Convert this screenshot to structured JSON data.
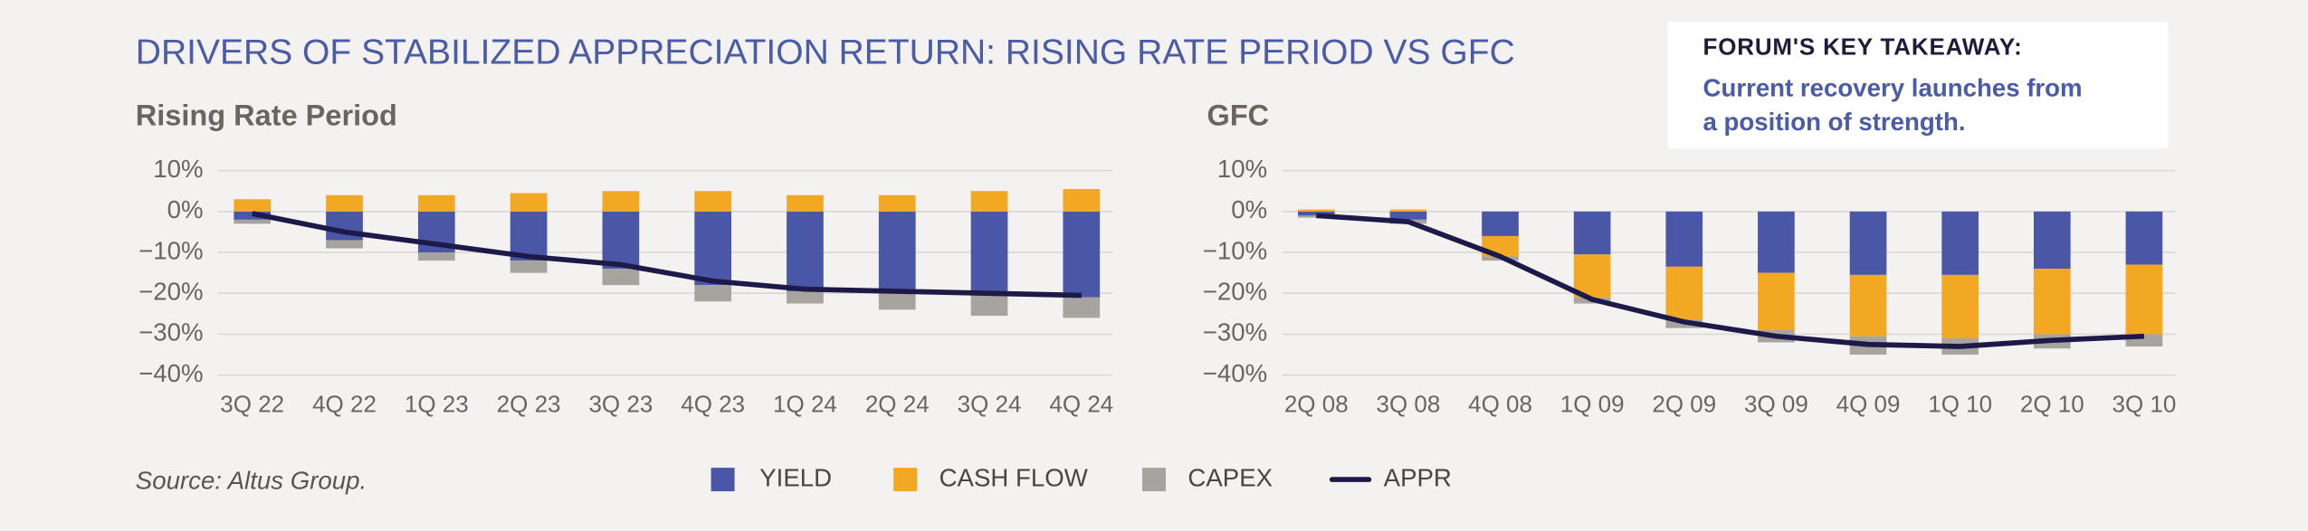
{
  "title": "DRIVERS OF STABILIZED APPRECIATION RETURN: RISING RATE PERIOD VS GFC",
  "takeaway": {
    "heading": "FORUM'S KEY TAKEAWAY:",
    "lines": [
      "Current recovery launches from",
      "a position of strength."
    ]
  },
  "source": "Source: Altus Group.",
  "chart_data": [
    {
      "type": "bar",
      "stacked": true,
      "title": "Rising Rate Period",
      "categories": [
        "3Q 22",
        "4Q 22",
        "1Q 23",
        "2Q 23",
        "3Q 23",
        "4Q 23",
        "1Q 24",
        "2Q 24",
        "3Q 24",
        "4Q 24"
      ],
      "series": [
        {
          "name": "YIELD",
          "color": "#4a56a6",
          "values": [
            -2,
            -7,
            -10,
            -12,
            -14,
            -18,
            -19.5,
            -20,
            -20.5,
            -21
          ]
        },
        {
          "name": "CASH FLOW",
          "color": "#f3a823",
          "values": [
            3,
            4,
            4,
            4.5,
            5,
            5,
            4,
            4,
            5,
            5.5
          ]
        },
        {
          "name": "CAPEX",
          "color": "#a7a39e",
          "values": [
            -1,
            -2,
            -2,
            -3,
            -4,
            -4,
            -3,
            -4,
            -5,
            -5
          ]
        },
        {
          "name": "APPR",
          "type": "line",
          "color": "#1d1a4a",
          "values": [
            -0.5,
            -5,
            -8,
            -11,
            -13,
            -17,
            -19,
            -19.5,
            -20,
            -20.5
          ]
        }
      ],
      "ylim": [
        -40,
        10
      ],
      "yticks": [
        {
          "value": 10,
          "label": "10%"
        },
        {
          "value": 0,
          "label": "0%"
        },
        {
          "value": -10,
          "label": "−10%"
        },
        {
          "value": -20,
          "label": "−20%"
        },
        {
          "value": -30,
          "label": "−30%"
        },
        {
          "value": -40,
          "label": "−40%"
        }
      ],
      "grid": true
    },
    {
      "type": "bar",
      "stacked": true,
      "title": "GFC",
      "categories": [
        "2Q 08",
        "3Q 08",
        "4Q 08",
        "1Q 09",
        "2Q 09",
        "3Q 09",
        "4Q 09",
        "1Q 10",
        "2Q 10",
        "3Q 10"
      ],
      "series": [
        {
          "name": "YIELD",
          "color": "#4a56a6",
          "values": [
            -1,
            -2,
            -6,
            -10.5,
            -13.5,
            -15,
            -15.5,
            -15.5,
            -14,
            -13
          ]
        },
        {
          "name": "CASH FLOW",
          "color": "#f3a823",
          "values": [
            0.5,
            0.5,
            -5,
            -10.5,
            -13,
            -14,
            -15,
            -15.5,
            -16,
            -17
          ]
        },
        {
          "name": "CAPEX",
          "color": "#a7a39e",
          "values": [
            -0.5,
            -1,
            -1,
            -1.5,
            -2,
            -3,
            -4.5,
            -4,
            -3.5,
            -3
          ]
        },
        {
          "name": "APPR",
          "type": "line",
          "color": "#1d1a4a",
          "values": [
            -1,
            -2.5,
            -11,
            -21.5,
            -27,
            -30.5,
            -32.5,
            -33,
            -31.5,
            -30.5
          ]
        }
      ],
      "ylim": [
        -40,
        10
      ],
      "yticks": [
        {
          "value": 10,
          "label": "10%"
        },
        {
          "value": 0,
          "label": "0%"
        },
        {
          "value": -10,
          "label": "−10%"
        },
        {
          "value": -20,
          "label": "−20%"
        },
        {
          "value": -30,
          "label": "−30%"
        },
        {
          "value": -40,
          "label": "−40%"
        }
      ],
      "grid": true
    }
  ]
}
